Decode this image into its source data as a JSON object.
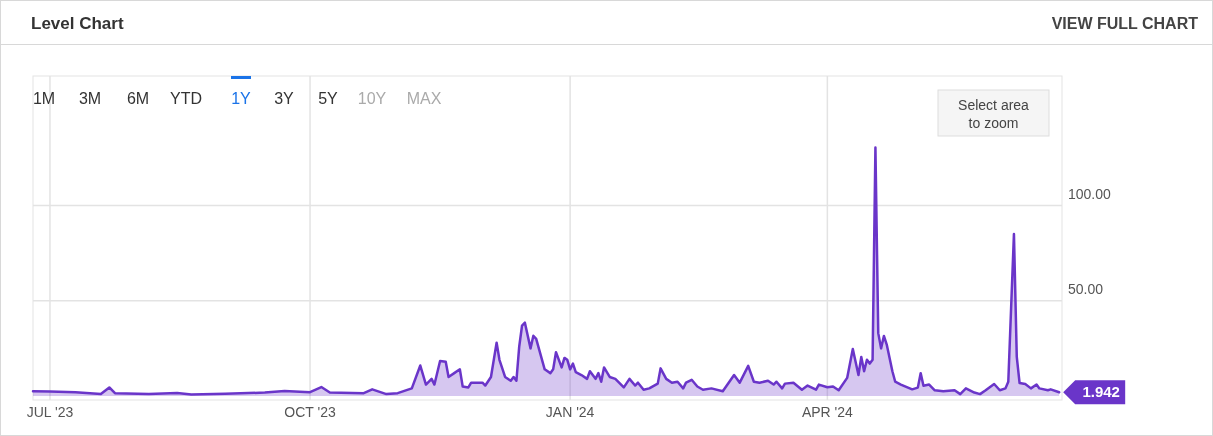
{
  "chart_data": {
    "type": "area",
    "title": "Level Chart",
    "annotations": [
      "VIEW FULL CHART",
      "1M",
      "3M",
      "6M",
      "YTD",
      "1Y",
      "3Y",
      "5Y",
      "10Y",
      "MAX",
      "Select area to zoom",
      {
        "text": "1.942",
        "x": "2024-06-22",
        "y": 1.942
      }
    ],
    "xlim": [
      "2023-06-25",
      "2024-06-23"
    ],
    "xticks": [
      {
        "value": "2023-07-01",
        "label": "JUL '23"
      },
      {
        "value": "2023-10-01",
        "label": "OCT '23"
      },
      {
        "value": "2024-01-01",
        "label": "JAN '24"
      },
      {
        "value": "2024-04-01",
        "label": "APR '24"
      }
    ],
    "ylim": [
      0,
      168
    ],
    "yticks": [
      {
        "value": 50,
        "label": "50.00"
      },
      {
        "value": 100,
        "label": "100.00"
      }
    ],
    "grid": true,
    "series": [
      {
        "color": "#6a35c9",
        "x": [
          "2023-06-25",
          "2023-07-01",
          "2023-07-10",
          "2023-07-19",
          "2023-07-22",
          "2023-07-24",
          "2023-08-05",
          "2023-08-15",
          "2023-08-20",
          "2023-09-01",
          "2023-09-15",
          "2023-09-22",
          "2023-10-01",
          "2023-10-05",
          "2023-10-08",
          "2023-10-20",
          "2023-10-23",
          "2023-10-28",
          "2023-11-01",
          "2023-11-06",
          "2023-11-09",
          "2023-11-11",
          "2023-11-13",
          "2023-11-14",
          "2023-11-16",
          "2023-11-18",
          "2023-11-19",
          "2023-11-21",
          "2023-11-23",
          "2023-11-24",
          "2023-11-26",
          "2023-11-27",
          "2023-12-01",
          "2023-12-02",
          "2023-12-04",
          "2023-12-06",
          "2023-12-07",
          "2023-12-09",
          "2023-12-11",
          "2023-12-12",
          "2023-12-13",
          "2023-12-14",
          "2023-12-15",
          "2023-12-16",
          "2023-12-18",
          "2023-12-19",
          "2023-12-20",
          "2023-12-23",
          "2023-12-25",
          "2023-12-26",
          "2023-12-27",
          "2023-12-29",
          "2023-12-30",
          "2023-12-31",
          "2024-01-01",
          "2024-01-02",
          "2024-01-03",
          "2024-01-05",
          "2024-01-07",
          "2024-01-08",
          "2024-01-10",
          "2024-01-11",
          "2024-01-12",
          "2024-01-13",
          "2024-01-15",
          "2024-01-17",
          "2024-01-20",
          "2024-01-22",
          "2024-01-24",
          "2024-01-25",
          "2024-01-27",
          "2024-01-29",
          "2024-02-01",
          "2024-02-02",
          "2024-02-04",
          "2024-02-06",
          "2024-02-08",
          "2024-02-10",
          "2024-02-11",
          "2024-02-13",
          "2024-02-15",
          "2024-02-17",
          "2024-02-20",
          "2024-02-24",
          "2024-02-28",
          "2024-03-01",
          "2024-03-04",
          "2024-03-06",
          "2024-03-08",
          "2024-03-11",
          "2024-03-13",
          "2024-03-14",
          "2024-03-16",
          "2024-03-17",
          "2024-03-20",
          "2024-03-23",
          "2024-03-25",
          "2024-03-28",
          "2024-03-29",
          "2024-04-01",
          "2024-04-03",
          "2024-04-05",
          "2024-04-08",
          "2024-04-10",
          "2024-04-12",
          "2024-04-13",
          "2024-04-14",
          "2024-04-15",
          "2024-04-16",
          "2024-04-17",
          "2024-04-18",
          "2024-04-19",
          "2024-04-20",
          "2024-04-21",
          "2024-04-22",
          "2024-04-24",
          "2024-04-25",
          "2024-04-27",
          "2024-05-01",
          "2024-05-03",
          "2024-05-04",
          "2024-05-05",
          "2024-05-07",
          "2024-05-09",
          "2024-05-12",
          "2024-05-16",
          "2024-05-18",
          "2024-05-20",
          "2024-05-23",
          "2024-05-25",
          "2024-05-27",
          "2024-05-30",
          "2024-06-01",
          "2024-06-03",
          "2024-06-04",
          "2024-06-06",
          "2024-06-07",
          "2024-06-08",
          "2024-06-10",
          "2024-06-12",
          "2024-06-14",
          "2024-06-15",
          "2024-06-18",
          "2024-06-19",
          "2024-06-22"
        ],
        "values": [
          2.5,
          2.3,
          2.0,
          1.0,
          4.5,
          1.5,
          1.0,
          1.6,
          0.8,
          1.2,
          1.8,
          2.6,
          2.0,
          4.7,
          1.8,
          1.5,
          3.5,
          1.0,
          1.5,
          4,
          16,
          6,
          9,
          6,
          18.4,
          18,
          10,
          12,
          14,
          5,
          4.5,
          7,
          7,
          5.5,
          10,
          28,
          19,
          10,
          8,
          10,
          8,
          26,
          37,
          38.5,
          25,
          31.6,
          30,
          14,
          12,
          14,
          23,
          15,
          20,
          19,
          14,
          17,
          12.5,
          11,
          9,
          13,
          9,
          12,
          7.5,
          15,
          10,
          9,
          4.5,
          9,
          5.5,
          7,
          3.3,
          4,
          6.5,
          14.5,
          9,
          7,
          7.5,
          4,
          7,
          8.5,
          5,
          3.3,
          4,
          2.5,
          11,
          7,
          15.8,
          7.5,
          7,
          8,
          6,
          7.5,
          4,
          6.5,
          7,
          3.3,
          5.5,
          3.3,
          6,
          4.6,
          5,
          3,
          9.5,
          24.7,
          11,
          20.5,
          13,
          19,
          17,
          19,
          130.5,
          33,
          25,
          31.5,
          27,
          13,
          7.5,
          6,
          3.5,
          4.4,
          12,
          5.4,
          6,
          3,
          2.5,
          3,
          1,
          4,
          1.8,
          1,
          3,
          6.3,
          3,
          4,
          7.5,
          85,
          20.5,
          6.8,
          6.3,
          4,
          6,
          4,
          3,
          3.5,
          1.942
        ]
      }
    ]
  }
}
